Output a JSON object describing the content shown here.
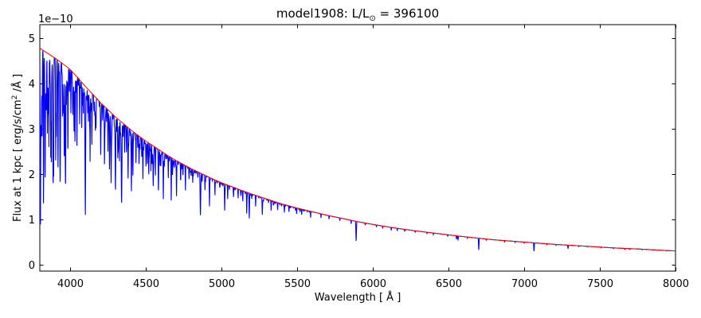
{
  "chart_data": {
    "type": "line",
    "title": {
      "pre": "model1908: L/L",
      "sun_symbol": "⊙",
      "post": " = 396100"
    },
    "xlabel": "Wavelength [ Å ]",
    "ylabel": {
      "pre": "Flux at 1 kpc [ erg/s/cm",
      "sup": "2",
      "post": " /Å ]"
    },
    "offset_label": "1e−10",
    "grid": false,
    "legend": null,
    "xlim": [
      3800,
      8000
    ],
    "ylim": [
      -0.14,
      5.29
    ],
    "xticks": [
      4000,
      4500,
      5000,
      5500,
      6000,
      6500,
      7000,
      7500,
      8000
    ],
    "yticks": [
      0,
      1,
      2,
      3,
      4,
      5
    ],
    "y_scale_factor": "1e-10",
    "series": [
      {
        "name": "model-spectrum",
        "color": "#0000ee",
        "role": "spectrum"
      },
      {
        "name": "continuum-fit",
        "color": "#ff0000",
        "role": "continuum"
      }
    ],
    "continuum_points": [
      [
        3800,
        4.78
      ],
      [
        3850,
        4.67
      ],
      [
        3900,
        4.56
      ],
      [
        3950,
        4.44
      ],
      [
        4000,
        4.31
      ],
      [
        4050,
        4.13
      ],
      [
        4100,
        3.94
      ],
      [
        4150,
        3.76
      ],
      [
        4200,
        3.58
      ],
      [
        4250,
        3.42
      ],
      [
        4300,
        3.26
      ],
      [
        4350,
        3.12
      ],
      [
        4400,
        2.98
      ],
      [
        4450,
        2.85
      ],
      [
        4500,
        2.73
      ],
      [
        4550,
        2.62
      ],
      [
        4600,
        2.51
      ],
      [
        4650,
        2.4
      ],
      [
        4700,
        2.3
      ],
      [
        4750,
        2.21
      ],
      [
        4800,
        2.12
      ],
      [
        4850,
        2.04
      ],
      [
        4900,
        1.96
      ],
      [
        4950,
        1.88
      ],
      [
        5000,
        1.81
      ],
      [
        5100,
        1.68
      ],
      [
        5200,
        1.56
      ],
      [
        5300,
        1.45
      ],
      [
        5400,
        1.34
      ],
      [
        5500,
        1.25
      ],
      [
        5600,
        1.17
      ],
      [
        5700,
        1.09
      ],
      [
        5800,
        1.02
      ],
      [
        5900,
        0.95
      ],
      [
        6000,
        0.89
      ],
      [
        6100,
        0.835
      ],
      [
        6200,
        0.785
      ],
      [
        6300,
        0.74
      ],
      [
        6400,
        0.7
      ],
      [
        6500,
        0.66
      ],
      [
        6600,
        0.62
      ],
      [
        6700,
        0.585
      ],
      [
        6800,
        0.55
      ],
      [
        6900,
        0.525
      ],
      [
        7000,
        0.5
      ],
      [
        7100,
        0.475
      ],
      [
        7200,
        0.45
      ],
      [
        7300,
        0.43
      ],
      [
        7400,
        0.41
      ],
      [
        7500,
        0.39
      ],
      [
        7600,
        0.37
      ],
      [
        7700,
        0.355
      ],
      [
        7800,
        0.34
      ],
      [
        7900,
        0.32
      ],
      [
        8000,
        0.305
      ]
    ],
    "absorption_lines": [
      [
        3815,
        0.28,
        1.5
      ],
      [
        3824,
        0.32,
        1.5
      ],
      [
        3835,
        0.42,
        2.5
      ],
      [
        3850,
        0.25,
        1.5
      ],
      [
        3860,
        0.33,
        1.5
      ],
      [
        3872,
        0.22,
        1.5
      ],
      [
        3889,
        0.42,
        2.5
      ],
      [
        3905,
        0.25,
        1.5
      ],
      [
        3920,
        0.3,
        1.5
      ],
      [
        3934,
        0.57,
        3.0
      ],
      [
        3950,
        0.22,
        1.5
      ],
      [
        3969,
        0.52,
        3.0
      ],
      [
        3985,
        0.2,
        1.5
      ],
      [
        4005,
        0.22,
        1.5
      ],
      [
        4026,
        0.26,
        1.8
      ],
      [
        4045,
        0.3,
        1.8
      ],
      [
        4063,
        0.24,
        1.5
      ],
      [
        4077,
        0.25,
        1.5
      ],
      [
        4101,
        0.53,
        3.0
      ],
      [
        4121,
        0.18,
        1.5
      ],
      [
        4132,
        0.22,
        1.5
      ],
      [
        4144,
        0.25,
        1.8
      ],
      [
        4167,
        0.18,
        1.5
      ],
      [
        4202,
        0.25,
        1.8
      ],
      [
        4227,
        0.32,
        1.8
      ],
      [
        4250,
        0.22,
        1.5
      ],
      [
        4260,
        0.26,
        1.5
      ],
      [
        4271,
        0.28,
        1.8
      ],
      [
        4300,
        0.32,
        2.2
      ],
      [
        4315,
        0.26,
        1.8
      ],
      [
        4326,
        0.28,
        1.5
      ],
      [
        4340,
        0.55,
        3.0
      ],
      [
        4360,
        0.2,
        1.5
      ],
      [
        4383,
        0.37,
        2.0
      ],
      [
        4405,
        0.3,
        1.8
      ],
      [
        4415,
        0.24,
        1.5
      ],
      [
        4435,
        0.2,
        1.5
      ],
      [
        4455,
        0.18,
        1.5
      ],
      [
        4481,
        0.29,
        1.8
      ],
      [
        4501,
        0.2,
        1.5
      ],
      [
        4520,
        0.24,
        1.5
      ],
      [
        4534,
        0.22,
        1.5
      ],
      [
        4549,
        0.28,
        1.8
      ],
      [
        4564,
        0.2,
        1.5
      ],
      [
        4584,
        0.26,
        1.8
      ],
      [
        4616,
        0.4,
        1.8
      ],
      [
        4649,
        0.2,
        1.5
      ],
      [
        4668,
        0.26,
        1.8
      ],
      [
        4703,
        0.32,
        1.8
      ],
      [
        4730,
        0.15,
        1.5
      ],
      [
        4762,
        0.25,
        1.5
      ],
      [
        4786,
        0.12,
        1.5
      ],
      [
        4810,
        0.14,
        1.5
      ],
      [
        4861,
        0.46,
        2.8
      ],
      [
        4891,
        0.16,
        1.5
      ],
      [
        4921,
        0.33,
        1.8
      ],
      [
        4957,
        0.18,
        1.5
      ],
      [
        5021,
        0.32,
        1.8
      ],
      [
        5041,
        0.15,
        1.5
      ],
      [
        5080,
        0.12,
        1.5
      ],
      [
        5110,
        0.12,
        1.5
      ],
      [
        5141,
        0.14,
        1.5
      ],
      [
        5167,
        0.28,
        1.8
      ],
      [
        5184,
        0.27,
        1.8
      ],
      [
        5226,
        0.15,
        1.5
      ],
      [
        5270,
        0.2,
        1.8
      ],
      [
        5328,
        0.15,
        1.5
      ],
      [
        5371,
        0.12,
        1.5
      ],
      [
        5416,
        0.12,
        1.5
      ],
      [
        5446,
        0.1,
        1.5
      ],
      [
        5497,
        0.09,
        1.5
      ],
      [
        5530,
        0.1,
        1.5
      ],
      [
        5589,
        0.12,
        1.5
      ],
      [
        5658,
        0.08,
        1.5
      ],
      [
        5711,
        0.07,
        1.5
      ],
      [
        5782,
        0.06,
        1.5
      ],
      [
        5857,
        0.08,
        1.5
      ],
      [
        5890,
        0.45,
        2.5
      ],
      [
        5950,
        0.05,
        1.5
      ],
      [
        6024,
        0.05,
        1.5
      ],
      [
        6065,
        0.06,
        1.5
      ],
      [
        6122,
        0.08,
        1.5
      ],
      [
        6162,
        0.07,
        1.5
      ],
      [
        6211,
        0.06,
        1.5
      ],
      [
        6280,
        0.05,
        1.5
      ],
      [
        6358,
        0.05,
        1.5
      ],
      [
        6400,
        0.05,
        1.5
      ],
      [
        6495,
        0.06,
        1.5
      ],
      [
        6553,
        0.12,
        1.8
      ],
      [
        6563,
        0.13,
        2.5
      ],
      [
        6625,
        0.04,
        1.5
      ],
      [
        6700,
        0.44,
        2.2
      ],
      [
        6750,
        0.04,
        1.5
      ],
      [
        6870,
        0.05,
        1.5
      ],
      [
        6940,
        0.04,
        1.5
      ],
      [
        7000,
        0.04,
        1.5
      ],
      [
        7065,
        0.38,
        2.2
      ],
      [
        7150,
        0.04,
        1.5
      ],
      [
        7210,
        0.04,
        1.5
      ],
      [
        7290,
        0.18,
        2.0
      ],
      [
        7360,
        0.04,
        1.5
      ],
      [
        7420,
        0.03,
        1.5
      ],
      [
        7510,
        0.04,
        1.5
      ],
      [
        7590,
        0.04,
        1.5
      ],
      [
        7665,
        0.06,
        1.8
      ],
      [
        7699,
        0.05,
        1.8
      ],
      [
        7780,
        0.04,
        1.5
      ],
      [
        7850,
        0.03,
        1.5
      ],
      [
        7940,
        0.03,
        1.5
      ]
    ],
    "line_forest": {
      "seed": 42,
      "count": 340,
      "lambda_min": 3803,
      "lambda_max": 5600,
      "blue_weight_power": 1.9,
      "max_extra_depth": 0.24
    }
  }
}
